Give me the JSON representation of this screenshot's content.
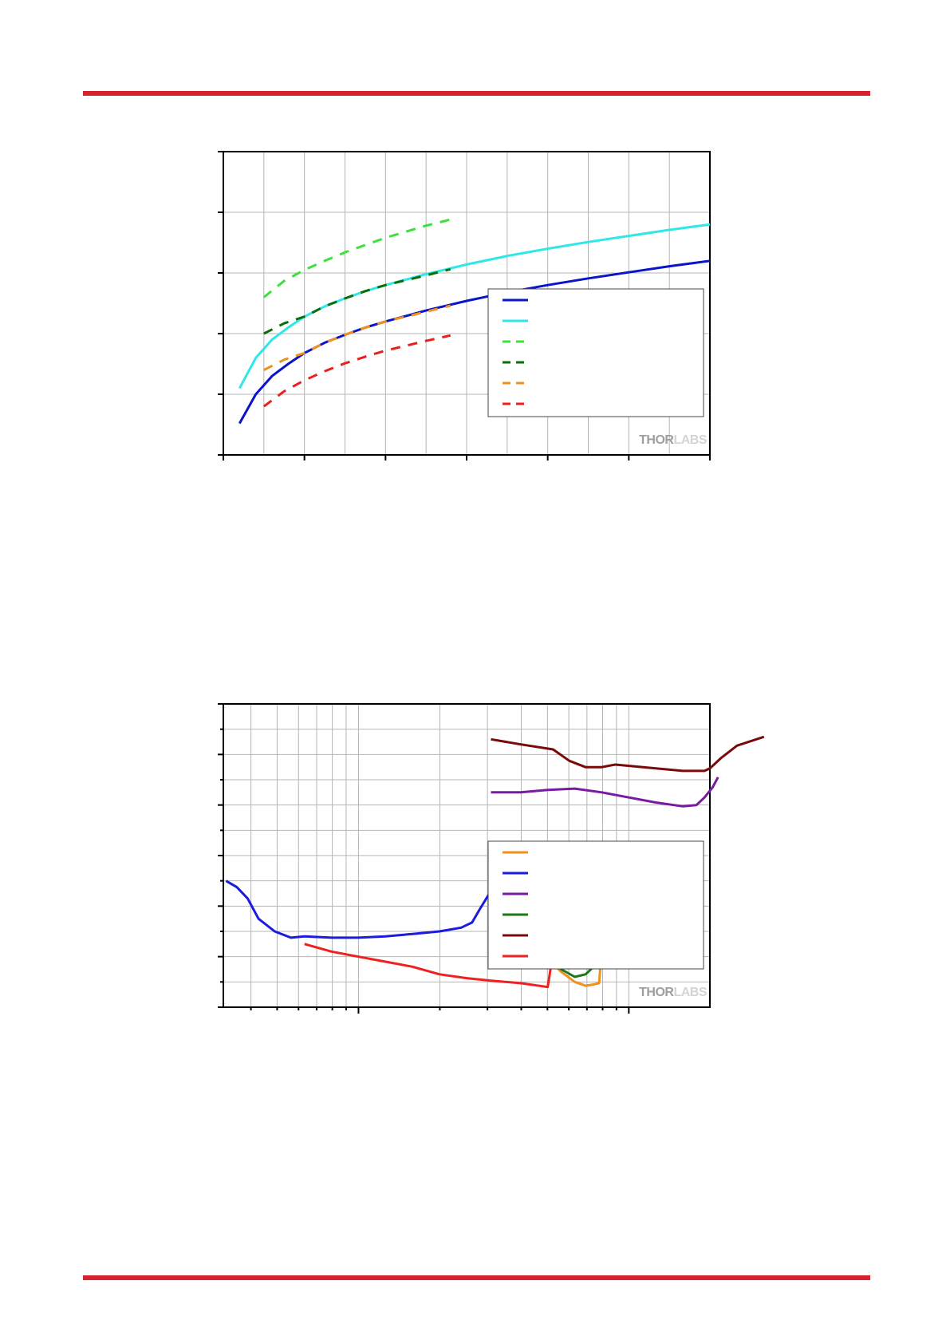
{
  "header": {
    "rule_color": "#d7232e"
  },
  "footer": {
    "rule_color": "#d7232e"
  },
  "charts": [
    {
      "watermark": {
        "part1": "THOR",
        "part2": "LABS"
      },
      "chart_data": {
        "type": "line",
        "title": "",
        "xlabel": "",
        "ylabel": "",
        "xlim": [
          0,
          6
        ],
        "ylim": [
          0,
          5
        ],
        "grid": true,
        "legend_placement": "center-right",
        "series": [
          {
            "color": "#0a14c8",
            "dash": "solid",
            "x": [
              0.2,
              0.4,
              0.6,
              0.8,
              1.0,
              1.25,
              1.5,
              1.75,
              2.0,
              2.5,
              3.0,
              3.5,
              4.0,
              4.5,
              5.0,
              5.5,
              6.0
            ],
            "y": [
              0.52,
              1.0,
              1.3,
              1.5,
              1.68,
              1.85,
              1.98,
              2.1,
              2.2,
              2.38,
              2.54,
              2.68,
              2.8,
              2.91,
              3.01,
              3.11,
              3.2
            ]
          },
          {
            "color": "#2ee8e8",
            "dash": "solid",
            "x": [
              0.2,
              0.4,
              0.6,
              0.8,
              1.0,
              1.25,
              1.5,
              1.75,
              2.0,
              2.5,
              3.0,
              3.5,
              4.0,
              4.5,
              5.0,
              5.5,
              6.0
            ],
            "y": [
              1.1,
              1.6,
              1.9,
              2.1,
              2.28,
              2.45,
              2.58,
              2.7,
              2.8,
              2.98,
              3.14,
              3.28,
              3.4,
              3.51,
              3.61,
              3.71,
              3.8
            ]
          },
          {
            "color": "#3ee03e",
            "dash": "dashed",
            "x": [
              0.5,
              0.75,
              1.0,
              1.25,
              1.5,
              1.75,
              2.0,
              2.25,
              2.5,
              2.8
            ],
            "y": [
              2.6,
              2.87,
              3.05,
              3.2,
              3.34,
              3.46,
              3.58,
              3.68,
              3.78,
              3.88
            ]
          },
          {
            "color": "#0a6e0a",
            "dash": "dashed",
            "x": [
              0.5,
              0.75,
              1.0,
              1.25,
              1.5,
              1.75,
              2.0,
              2.25,
              2.5,
              2.8
            ],
            "y": [
              2.0,
              2.17,
              2.28,
              2.45,
              2.58,
              2.7,
              2.8,
              2.88,
              2.96,
              3.06
            ]
          },
          {
            "color": "#f0901e",
            "dash": "dashed",
            "x": [
              0.5,
              0.75,
              1.0,
              1.25,
              1.5,
              1.75,
              2.0,
              2.25,
              2.5,
              2.8
            ],
            "y": [
              1.4,
              1.57,
              1.68,
              1.85,
              1.98,
              2.1,
              2.2,
              2.28,
              2.36,
              2.46
            ]
          },
          {
            "color": "#e82020",
            "dash": "dashed",
            "x": [
              0.5,
              0.75,
              1.0,
              1.25,
              1.5,
              1.75,
              2.0,
              2.25,
              2.5,
              2.8
            ],
            "y": [
              0.8,
              1.05,
              1.23,
              1.38,
              1.51,
              1.62,
              1.72,
              1.8,
              1.88,
              1.97
            ]
          }
        ]
      }
    },
    {
      "watermark": {
        "part1": "THOR",
        "part2": "LABS"
      },
      "chart_data": {
        "type": "line",
        "title": "",
        "xlabel": "",
        "ylabel": "",
        "x_scale": "log",
        "x_log_decades": [
          -1.5,
          0.3
        ],
        "ylim": [
          0,
          12
        ],
        "grid": true,
        "legend_placement": "center-right",
        "series": [
          {
            "color": "#f0901e",
            "x_log": [
              -0.51,
              -0.45,
              -0.4,
              -0.35,
              -0.3,
              -0.25,
              -0.2,
              -0.16,
              -0.13,
              -0.11,
              -0.1,
              -0.08,
              -0.06,
              0.0,
              0.1,
              0.22
            ],
            "y": [
              2.1,
              2.2,
              2.5,
              2.2,
              1.9,
              1.4,
              1.0,
              0.85,
              0.9,
              0.95,
              2.3,
              2.9,
              3.0,
              2.8,
              2.5,
              2.7
            ]
          },
          {
            "color": "#1a1ae0",
            "x_log": [
              -1.49,
              -1.45,
              -1.41,
              -1.37,
              -1.31,
              -1.25,
              -1.2,
              -1.1,
              -1.0,
              -0.9,
              -0.8,
              -0.7,
              -0.62,
              -0.58,
              -0.55,
              -0.51,
              -0.49
            ],
            "y": [
              5.0,
              4.75,
              4.3,
              3.5,
              3.0,
              2.75,
              2.8,
              2.75,
              2.75,
              2.8,
              2.9,
              3.0,
              3.15,
              3.35,
              3.9,
              4.6,
              5.0
            ]
          },
          {
            "color": "#7a1aa0",
            "x_log": [
              -0.51,
              -0.4,
              -0.3,
              -0.2,
              -0.1,
              0.0,
              0.1,
              0.2,
              0.25,
              0.28,
              0.31,
              0.33
            ],
            "y": [
              8.5,
              8.5,
              8.6,
              8.65,
              8.5,
              8.3,
              8.1,
              7.95,
              8.0,
              8.3,
              8.7,
              9.1
            ]
          },
          {
            "color": "#1a7a1a",
            "x_log": [
              -0.51,
              -0.45,
              -0.38,
              -0.3,
              -0.25,
              -0.2,
              -0.16,
              -0.13,
              -0.1,
              -0.08,
              -0.06
            ],
            "y": [
              3.0,
              2.65,
              2.3,
              1.95,
              1.5,
              1.2,
              1.3,
              1.6,
              1.8,
              1.95,
              2.65
            ]
          },
          {
            "color": "#7a0a0a",
            "x_log": [
              -0.51,
              -0.4,
              -0.28,
              -0.22,
              -0.16,
              -0.1,
              -0.05,
              0.1,
              0.2,
              0.25,
              0.28,
              0.3,
              0.34,
              0.4,
              0.5
            ],
            "y": [
              10.6,
              10.4,
              10.2,
              9.75,
              9.5,
              9.5,
              9.6,
              9.45,
              9.35,
              9.35,
              9.35,
              9.45,
              9.85,
              10.35,
              10.7
            ]
          },
          {
            "color": "#f02020",
            "x_log": [
              -1.2,
              -1.1,
              -1.0,
              -0.9,
              -0.8,
              -0.7,
              -0.6,
              -0.51,
              -0.4,
              -0.3,
              -0.29,
              -0.28
            ],
            "y": [
              2.5,
              2.2,
              2.0,
              1.8,
              1.6,
              1.3,
              1.15,
              1.05,
              0.95,
              0.8,
              1.5,
              2.1
            ]
          }
        ]
      }
    }
  ]
}
